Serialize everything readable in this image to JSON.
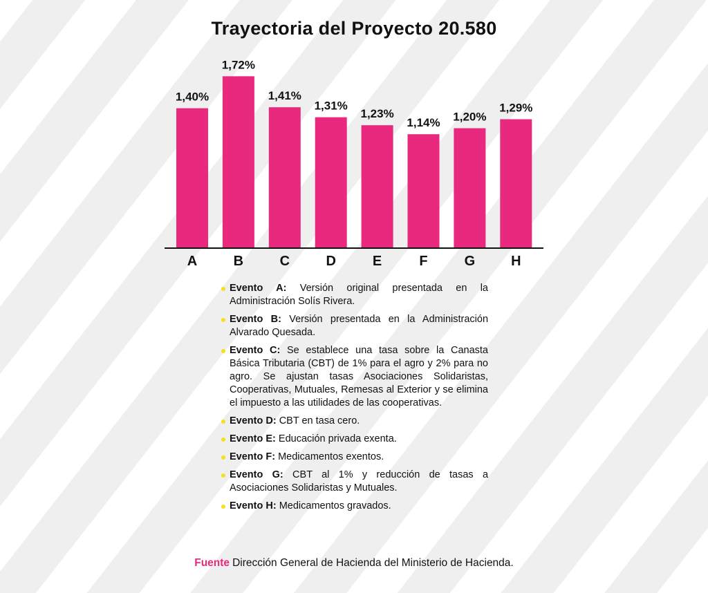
{
  "chart_data": {
    "type": "bar",
    "title": "Trayectoria del Proyecto 20.580",
    "categories": [
      "A",
      "B",
      "C",
      "D",
      "E",
      "F",
      "G",
      "H"
    ],
    "values": [
      1.4,
      1.72,
      1.41,
      1.31,
      1.23,
      1.14,
      1.2,
      1.29
    ],
    "value_labels": [
      "1,40%",
      "1,72%",
      "1,41%",
      "1,31%",
      "1,23%",
      "1,14%",
      "1,20%",
      "1,29%"
    ],
    "ylim": [
      0,
      1.75
    ],
    "grid": false,
    "bar_color": "#e8297d"
  },
  "events": [
    {
      "label": "Evento A:",
      "text": "Versión original presentada en la Administración Solís Rivera."
    },
    {
      "label": "Evento B:",
      "text": "Versión presentada en la Administración Alvarado Quesada."
    },
    {
      "label": "Evento C:",
      "text": "Se establece una tasa sobre la Canasta Básica Tributaria (CBT) de 1% para el agro y 2% para no agro. Se ajustan tasas Asociaciones Solidaristas, Cooperativas, Mutuales, Remesas al Exterior y se elimina el impuesto a las utilidades de las cooperativas."
    },
    {
      "label": "Evento D:",
      "text": "CBT en tasa cero."
    },
    {
      "label": "Evento E:",
      "text": "Educación privada exenta."
    },
    {
      "label": "Evento F:",
      "text": "Medicamentos exentos."
    },
    {
      "label": "Evento G:",
      "text": "CBT al 1% y reducción de tasas a Asociaciones Solidaristas y Mutuales."
    },
    {
      "label": "Evento H:",
      "text": "Medicamentos gravados."
    }
  ],
  "bullet_color": "#f2e21b",
  "source": {
    "label": "Fuente",
    "text": "Dirección General de Hacienda del Ministerio de Hacienda."
  }
}
